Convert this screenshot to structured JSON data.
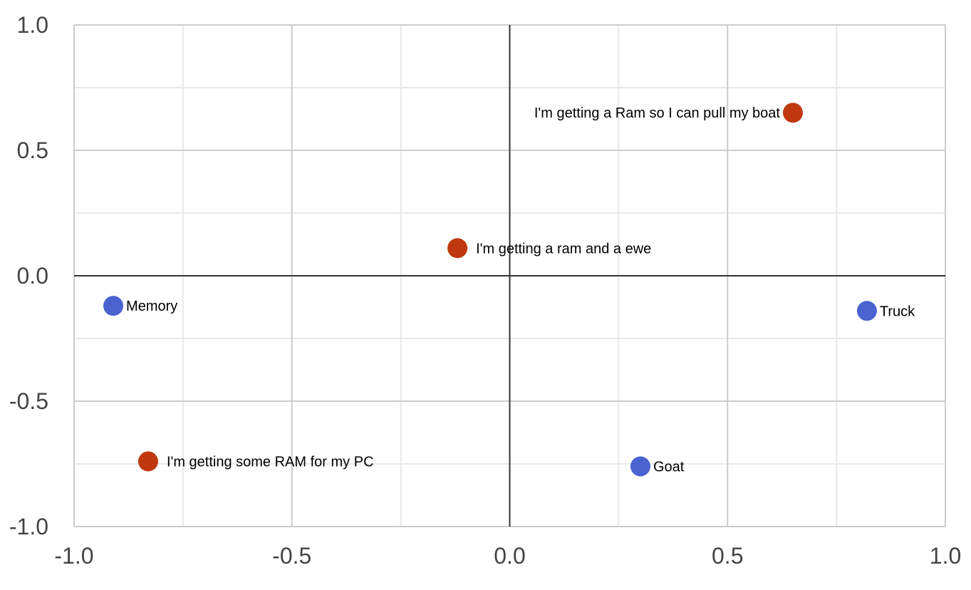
{
  "chart_data": {
    "type": "scatter",
    "title": "",
    "xlabel": "",
    "ylabel": "",
    "xlim": [
      -1.0,
      1.0
    ],
    "ylim": [
      -1.0,
      1.0
    ],
    "grid": true,
    "x_ticks": [
      "-1.0",
      "-0.5",
      "0.0",
      "0.5",
      "1.0"
    ],
    "y_ticks": [
      "1.0",
      "0.5",
      "0.0",
      "-0.5",
      "-1.0"
    ],
    "series": [
      {
        "color": "#4a63d1",
        "points": [
          {
            "label": "Memory",
            "x": -0.91,
            "y": -0.12
          },
          {
            "label": "Truck",
            "x": 0.82,
            "y": -0.14
          },
          {
            "label": "Goat",
            "x": 0.3,
            "y": -0.76
          }
        ]
      },
      {
        "color": "#c0380f",
        "points": [
          {
            "label": "I'm getting a Ram so I can pull my boat",
            "x": 0.65,
            "y": 0.65
          },
          {
            "label": "I'm getting a ram and a ewe",
            "x": -0.12,
            "y": 0.11
          },
          {
            "label": "I'm getting some RAM for my PC",
            "x": -0.83,
            "y": -0.74
          }
        ]
      }
    ]
  }
}
